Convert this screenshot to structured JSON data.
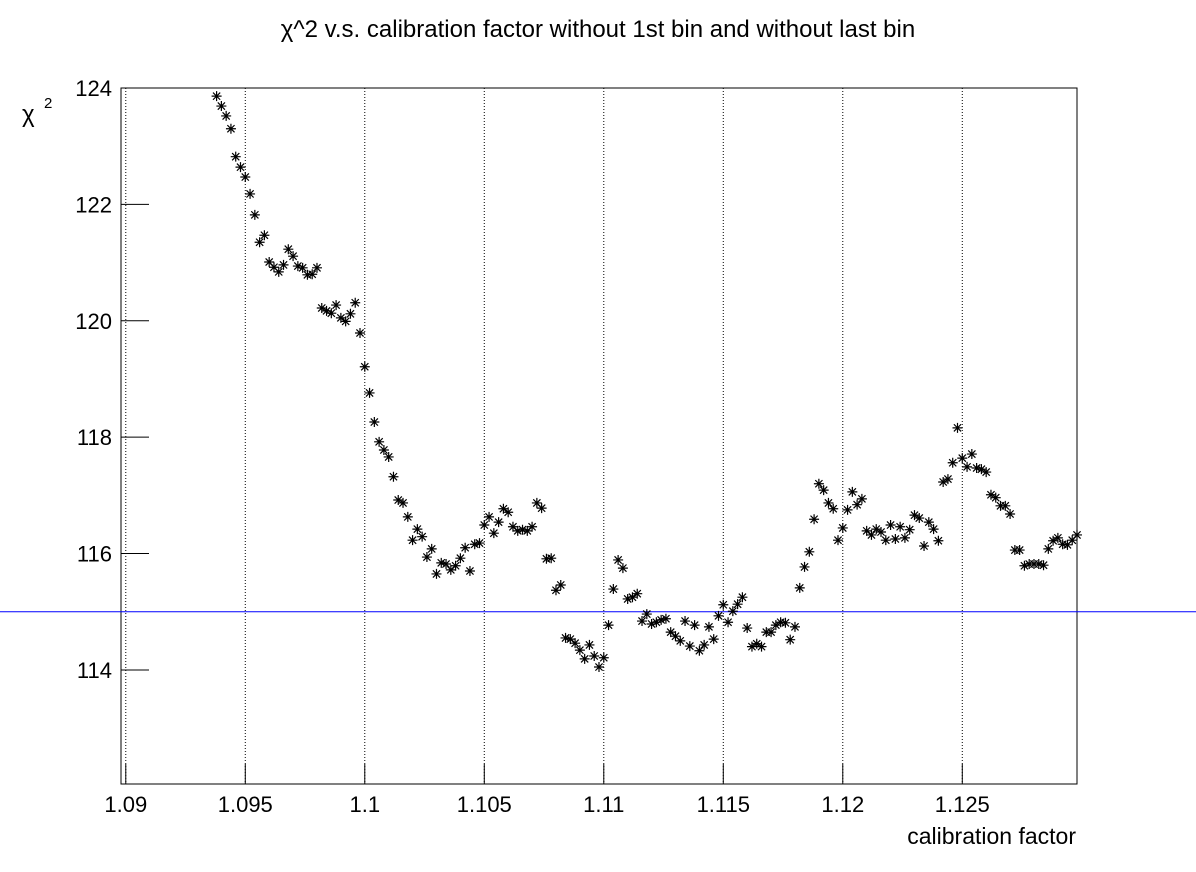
{
  "chart_data": {
    "type": "scatter",
    "title": "χ^2 v.s. calibration factor without 1st bin and without last bin",
    "xlabel": "calibration factor",
    "ylabel": {
      "base": "χ",
      "superscript": "2"
    },
    "marker": "asterisk",
    "color": "#000000",
    "xlim": [
      1.0898,
      1.1298
    ],
    "ylim": [
      112.04,
      124
    ],
    "xticks": [
      1.09,
      1.095,
      1.1,
      1.105,
      1.11,
      1.115,
      1.12,
      1.125
    ],
    "yticks": [
      114,
      116,
      118,
      120,
      122,
      124
    ],
    "grid": "x",
    "hline": {
      "value": 115,
      "color": "#0000ff"
    },
    "x": [
      1.0938,
      1.094,
      1.0942,
      1.0944,
      1.0946,
      1.0948,
      1.095,
      1.0952,
      1.0954,
      1.0956,
      1.0958,
      1.096,
      1.0962,
      1.0964,
      1.0966,
      1.0968,
      1.097,
      1.0972,
      1.0974,
      1.0976,
      1.0978,
      1.098,
      1.0982,
      1.0984,
      1.0986,
      1.0988,
      1.099,
      1.0992,
      1.0994,
      1.0996,
      1.0998,
      1.1,
      1.1002,
      1.1004,
      1.1006,
      1.1008,
      1.101,
      1.1012,
      1.1014,
      1.1016,
      1.1018,
      1.102,
      1.1022,
      1.1024,
      1.1026,
      1.1028,
      1.103,
      1.1032,
      1.1034,
      1.1036,
      1.1038,
      1.104,
      1.1042,
      1.1044,
      1.1046,
      1.1048,
      1.105,
      1.1052,
      1.1054,
      1.1056,
      1.1058,
      1.106,
      1.1062,
      1.1064,
      1.1066,
      1.1068,
      1.107,
      1.1072,
      1.1074,
      1.1076,
      1.1078,
      1.108,
      1.1082,
      1.1084,
      1.1086,
      1.1088,
      1.109,
      1.1092,
      1.1094,
      1.1096,
      1.1098,
      1.11,
      1.1102,
      1.1104,
      1.1106,
      1.1108,
      1.111,
      1.1112,
      1.1114,
      1.1116,
      1.1118,
      1.112,
      1.1122,
      1.1124,
      1.1126,
      1.1128,
      1.113,
      1.1132,
      1.1134,
      1.1136,
      1.1138,
      1.114,
      1.1142,
      1.1144,
      1.1146,
      1.1148,
      1.115,
      1.1152,
      1.1154,
      1.1156,
      1.1158,
      1.116,
      1.1162,
      1.1164,
      1.1166,
      1.1168,
      1.117,
      1.1172,
      1.1174,
      1.1176,
      1.1178,
      1.118,
      1.1182,
      1.1184,
      1.1186,
      1.1188,
      1.119,
      1.1192,
      1.1194,
      1.1196,
      1.1198,
      1.12,
      1.1202,
      1.1204,
      1.1206,
      1.1208,
      1.121,
      1.1212,
      1.1214,
      1.1216,
      1.1218,
      1.122,
      1.1222,
      1.1224,
      1.1226,
      1.1228,
      1.123,
      1.1232,
      1.1234,
      1.1236,
      1.1238,
      1.124,
      1.1242,
      1.1244,
      1.1246,
      1.1248,
      1.125,
      1.1252,
      1.1254,
      1.1256,
      1.1258,
      1.126,
      1.1262,
      1.1264,
      1.1266,
      1.1268,
      1.127,
      1.1272,
      1.1274,
      1.1276,
      1.1278,
      1.128,
      1.1282,
      1.1284,
      1.1286,
      1.1288,
      1.129,
      1.1292,
      1.1294,
      1.1296,
      1.1298
    ],
    "values": [
      123.86,
      123.69,
      123.52,
      123.3,
      122.82,
      122.64,
      122.47,
      122.18,
      121.82,
      121.35,
      121.47,
      121.01,
      120.92,
      120.84,
      120.96,
      121.23,
      121.11,
      120.94,
      120.91,
      120.79,
      120.8,
      120.91,
      120.22,
      120.17,
      120.13,
      120.27,
      120.05,
      119.99,
      120.12,
      120.31,
      119.79,
      119.21,
      118.76,
      118.26,
      117.92,
      117.78,
      117.66,
      117.32,
      116.92,
      116.87,
      116.63,
      116.23,
      116.42,
      116.29,
      115.94,
      116.08,
      115.65,
      115.84,
      115.82,
      115.72,
      115.79,
      115.92,
      116.1,
      115.7,
      116.16,
      116.18,
      116.49,
      116.63,
      116.35,
      116.54,
      116.77,
      116.71,
      116.46,
      116.39,
      116.41,
      116.39,
      116.46,
      116.87,
      116.78,
      115.91,
      115.92,
      115.37,
      115.46,
      114.55,
      114.53,
      114.46,
      114.34,
      114.19,
      114.43,
      114.24,
      114.05,
      114.21,
      114.77,
      115.39,
      115.89,
      115.75,
      115.22,
      115.25,
      115.31,
      114.84,
      114.96,
      114.79,
      114.82,
      114.86,
      114.88,
      114.65,
      114.58,
      114.5,
      114.84,
      114.41,
      114.77,
      114.33,
      114.43,
      114.74,
      114.53,
      114.93,
      115.12,
      114.82,
      115.01,
      115.13,
      115.25,
      114.72,
      114.4,
      114.45,
      114.4,
      114.65,
      114.65,
      114.77,
      114.82,
      114.81,
      114.52,
      114.74,
      115.41,
      115.77,
      116.03,
      116.59,
      117.2,
      117.09,
      116.87,
      116.77,
      116.23,
      116.44,
      116.75,
      117.06,
      116.84,
      116.94,
      116.39,
      116.32,
      116.42,
      116.37,
      116.23,
      116.49,
      116.25,
      116.46,
      116.27,
      116.41,
      116.66,
      116.61,
      116.13,
      116.54,
      116.42,
      116.22,
      117.23,
      117.28,
      117.56,
      118.16,
      117.64,
      117.49,
      117.71,
      117.47,
      117.45,
      117.4,
      117.01,
      116.96,
      116.82,
      116.82,
      116.68,
      116.06,
      116.06,
      115.79,
      115.82,
      115.82,
      115.82,
      115.8,
      116.08,
      116.22,
      116.27,
      116.16,
      116.15,
      116.23,
      116.32
    ]
  }
}
